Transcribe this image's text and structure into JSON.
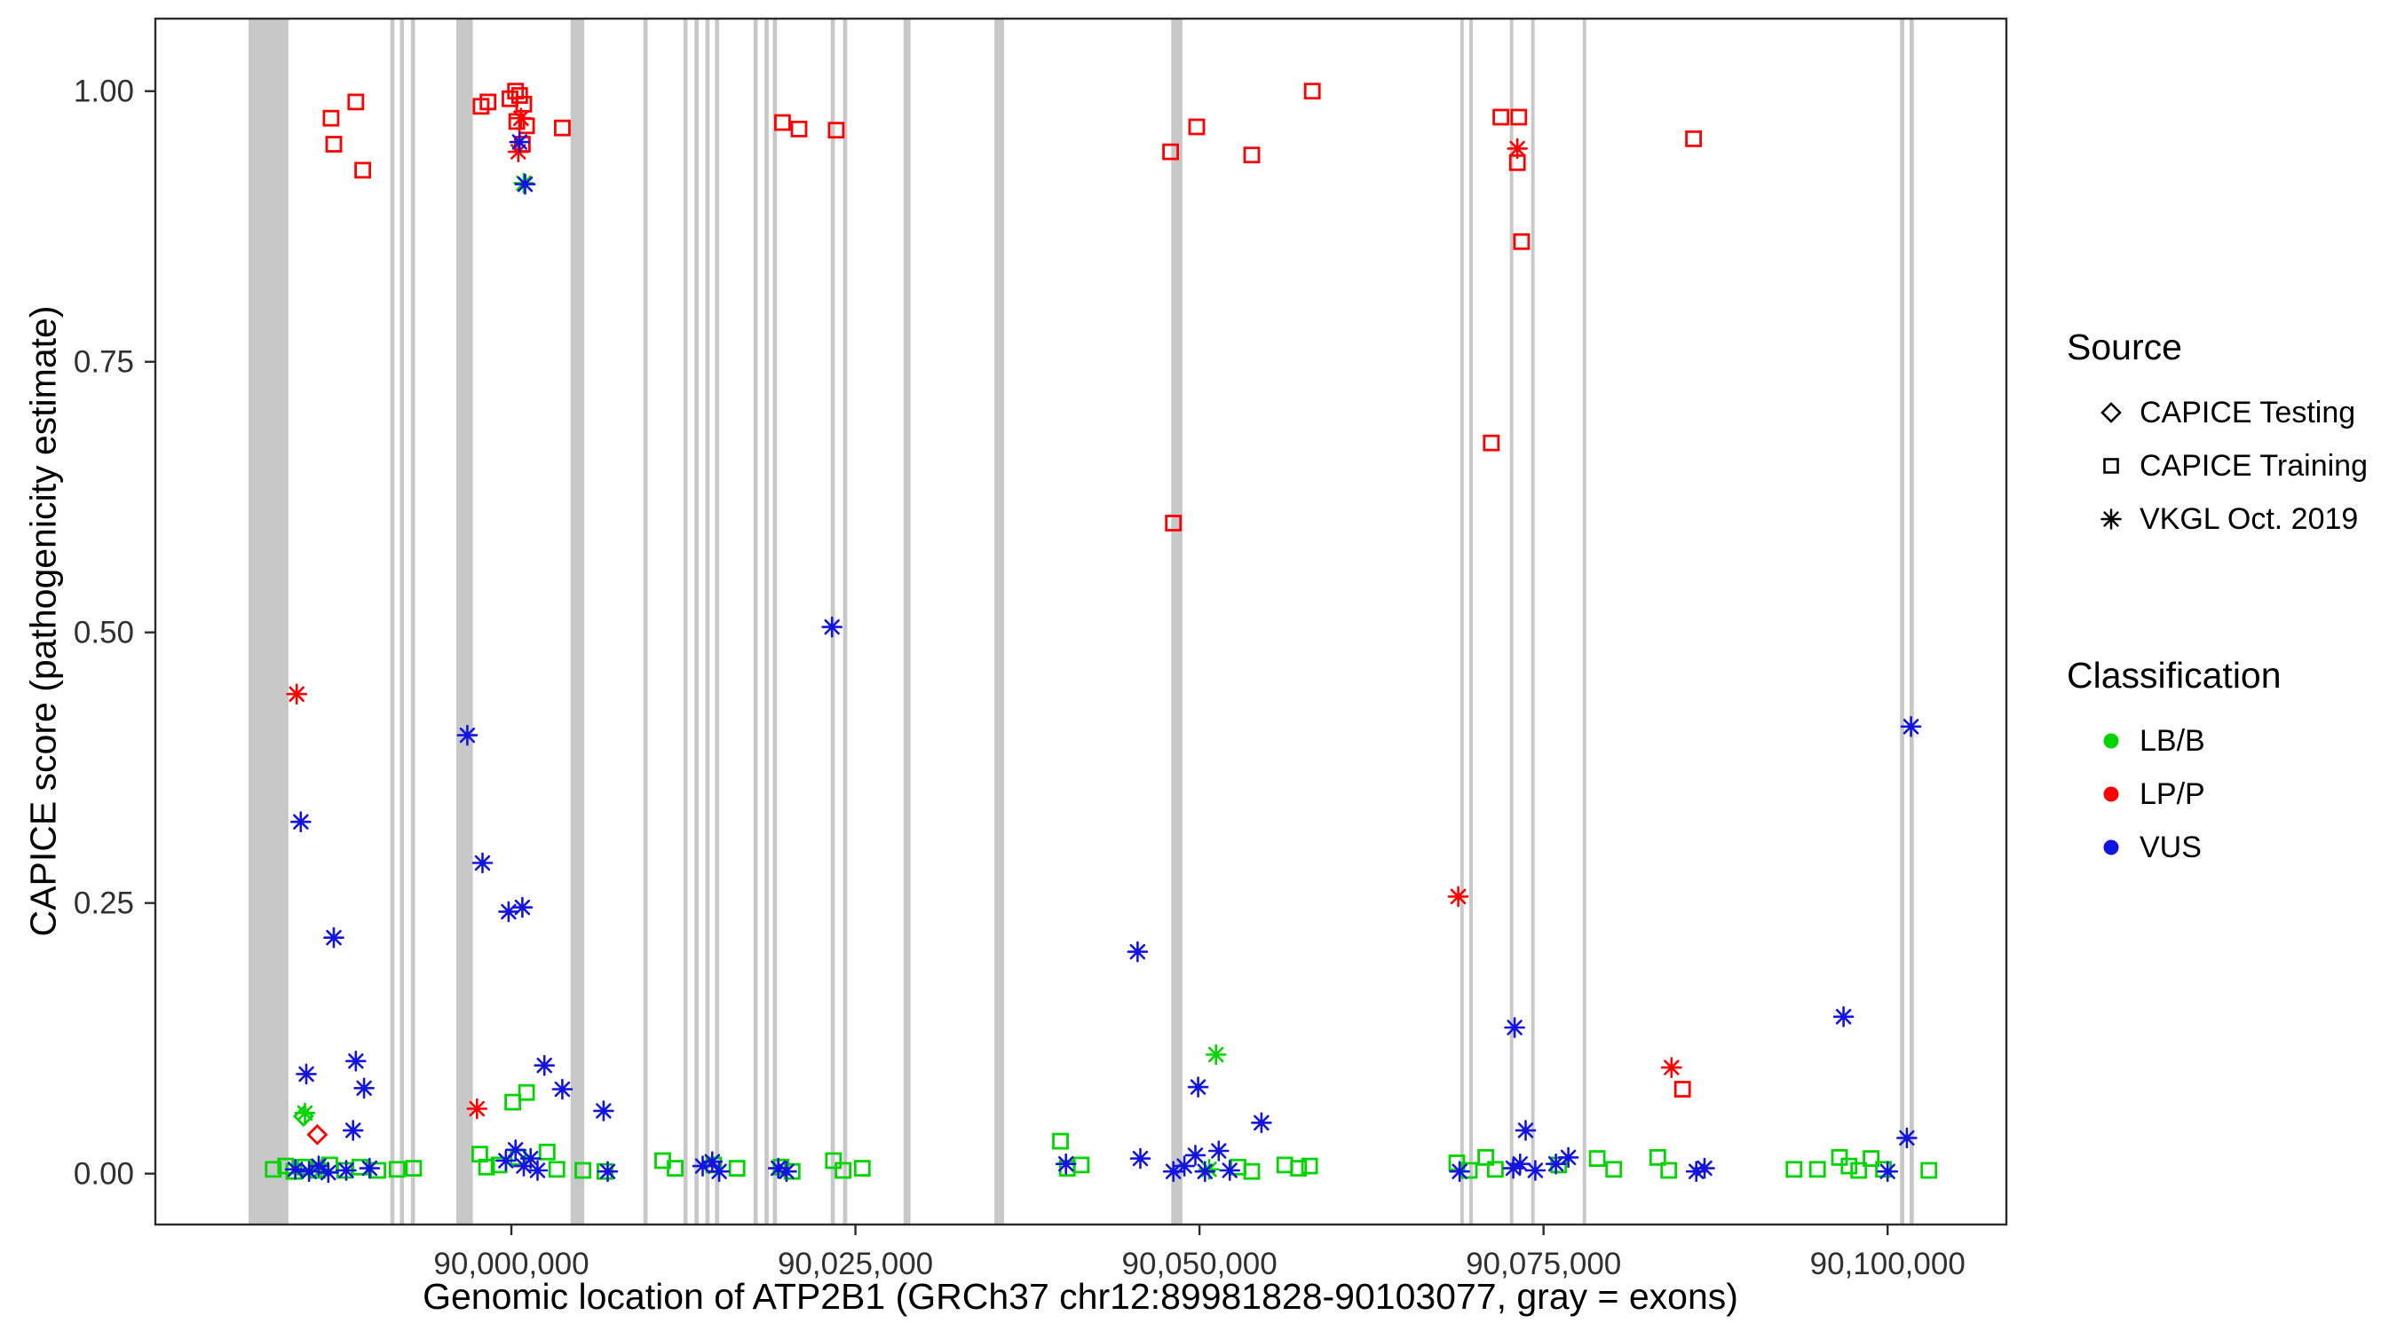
{
  "legend": {
    "source": {
      "title": "Source",
      "items": [
        {
          "label": "CAPICE Testing",
          "marker": "diamond"
        },
        {
          "label": "CAPICE Training",
          "marker": "square"
        },
        {
          "label": "VKGL Oct. 2019",
          "marker": "asterisk"
        }
      ]
    },
    "classification": {
      "title": "Classification",
      "items": [
        {
          "label": "LB/B",
          "color": "#00d500"
        },
        {
          "label": "LP/P",
          "color": "#ff0000"
        },
        {
          "label": "VUS",
          "color": "#1414e0"
        }
      ]
    }
  },
  "chart_data": {
    "type": "scatter",
    "title": "",
    "xlabel": "Genomic location of ATP2B1 (GRCh37 chr12:89981828-90103077, gray = exons)",
    "ylabel": "CAPICE score (pathogenicity estimate)",
    "xlim": [
      89974132,
      90108630
    ],
    "ylim": [
      -0.047,
      1.067
    ],
    "x_ticks": [
      {
        "value": 90000000,
        "label": "90,000,000"
      },
      {
        "value": 90025000,
        "label": "90,025,000"
      },
      {
        "value": 90050000,
        "label": "90,050,000"
      },
      {
        "value": 90075000,
        "label": "90,075,000"
      },
      {
        "value": 90100000,
        "label": "90,100,000"
      }
    ],
    "y_ticks": [
      {
        "value": 0.0,
        "label": "0.00"
      },
      {
        "value": 0.25,
        "label": "0.25"
      },
      {
        "value": 0.5,
        "label": "0.50"
      },
      {
        "value": 0.75,
        "label": "0.75"
      },
      {
        "value": 1.0,
        "label": "1.00"
      }
    ],
    "exon_color": "#c8c8c8",
    "colors": {
      "LB/B": "#00d500",
      "LP/P": "#ff0000",
      "VUS": "#1414e0"
    },
    "exons": [
      [
        89980900,
        89983800
      ],
      [
        89991200,
        89991500
      ],
      [
        89991900,
        89992200
      ],
      [
        89992700,
        89993000
      ],
      [
        89996000,
        89997200
      ],
      [
        90004300,
        90005300
      ],
      [
        90009600,
        90009900
      ],
      [
        90012500,
        90012800
      ],
      [
        90013300,
        90013600
      ],
      [
        90014100,
        90014400
      ],
      [
        90014800,
        90015100
      ],
      [
        90017600,
        90017900
      ],
      [
        90018400,
        90018700
      ],
      [
        90019000,
        90019300
      ],
      [
        90023200,
        90023500
      ],
      [
        90024100,
        90024400
      ],
      [
        90028500,
        90029000
      ],
      [
        90035100,
        90035800
      ],
      [
        90047950,
        90048760
      ],
      [
        90068950,
        90069200
      ],
      [
        90069600,
        90069850
      ],
      [
        90072550,
        90072800
      ],
      [
        90074100,
        90074350
      ],
      [
        90077850,
        90078100
      ],
      [
        90100900,
        90101200
      ],
      [
        90101600,
        90101900
      ]
    ],
    "series": [
      {
        "source": "CAPICE Training",
        "classification": "LP/P",
        "marker": "square",
        "points": [
          [
            89986900,
            0.975
          ],
          [
            89988700,
            0.99
          ],
          [
            89987100,
            0.951
          ],
          [
            89989200,
            0.927
          ],
          [
            89997800,
            0.986
          ],
          [
            89998300,
            0.99
          ],
          [
            89999900,
            0.993
          ],
          [
            90000300,
            1.0
          ],
          [
            90000600,
            0.996
          ],
          [
            90000900,
            0.988
          ],
          [
            90000400,
            0.972
          ],
          [
            90001100,
            0.968
          ],
          [
            90000800,
            0.951
          ],
          [
            90003700,
            0.966
          ],
          [
            90019700,
            0.971
          ],
          [
            90020900,
            0.965
          ],
          [
            90023600,
            0.964
          ],
          [
            90047900,
            0.944
          ],
          [
            90049800,
            0.967
          ],
          [
            90048100,
            0.601
          ],
          [
            90053800,
            0.941
          ],
          [
            90058200,
            1.0
          ],
          [
            90071900,
            0.976
          ],
          [
            90073200,
            0.976
          ],
          [
            90073100,
            0.934
          ],
          [
            90073400,
            0.861
          ],
          [
            90071200,
            0.675
          ],
          [
            90085900,
            0.956
          ],
          [
            90085100,
            0.078
          ]
        ]
      },
      {
        "source": "CAPICE Training",
        "classification": "LB/B",
        "marker": "square",
        "points": [
          [
            89982700,
            0.004
          ],
          [
            89983600,
            0.007
          ],
          [
            89984200,
            0.002
          ],
          [
            89985000,
            0.006
          ],
          [
            89985900,
            0.003
          ],
          [
            89986800,
            0.008
          ],
          [
            89987900,
            0.003
          ],
          [
            89989000,
            0.006
          ],
          [
            89990300,
            0.003
          ],
          [
            89991700,
            0.004
          ],
          [
            89992900,
            0.005
          ],
          [
            89997700,
            0.018
          ],
          [
            89998200,
            0.006
          ],
          [
            89999100,
            0.008
          ],
          [
            90000100,
            0.066
          ],
          [
            90001100,
            0.075
          ],
          [
            90000500,
            0.015
          ],
          [
            90002600,
            0.02
          ],
          [
            90003300,
            0.004
          ],
          [
            90005200,
            0.003
          ],
          [
            90006800,
            0.002
          ],
          [
            90011000,
            0.012
          ],
          [
            90011900,
            0.005
          ],
          [
            90014700,
            0.008
          ],
          [
            90016400,
            0.005
          ],
          [
            90019600,
            0.006
          ],
          [
            90020400,
            0.002
          ],
          [
            90023400,
            0.012
          ],
          [
            90024100,
            0.003
          ],
          [
            90025500,
            0.005
          ],
          [
            90039900,
            0.03
          ],
          [
            90040400,
            0.005
          ],
          [
            90041400,
            0.008
          ],
          [
            90052800,
            0.006
          ],
          [
            90053800,
            0.002
          ],
          [
            90056200,
            0.008
          ],
          [
            90057200,
            0.005
          ],
          [
            90058000,
            0.007
          ],
          [
            90068700,
            0.01
          ],
          [
            90069600,
            0.003
          ],
          [
            90070800,
            0.015
          ],
          [
            90071500,
            0.004
          ],
          [
            90076100,
            0.008
          ],
          [
            90078900,
            0.014
          ],
          [
            90080100,
            0.004
          ],
          [
            90083300,
            0.015
          ],
          [
            90084100,
            0.003
          ],
          [
            90093200,
            0.004
          ],
          [
            90094900,
            0.004
          ],
          [
            90096500,
            0.015
          ],
          [
            90097200,
            0.007
          ],
          [
            90097900,
            0.003
          ],
          [
            90098800,
            0.014
          ],
          [
            90099700,
            0.004
          ],
          [
            90103000,
            0.003
          ]
        ]
      },
      {
        "source": "CAPICE Testing",
        "classification": "LP/P",
        "marker": "diamond",
        "points": [
          [
            89985900,
            0.036
          ]
        ]
      },
      {
        "source": "CAPICE Testing",
        "classification": "LB/B",
        "marker": "diamond",
        "points": [
          [
            89984900,
            0.053
          ]
        ]
      },
      {
        "source": "VKGL Oct. 2019",
        "classification": "LP/P",
        "marker": "asterisk",
        "points": [
          [
            89984400,
            0.443
          ],
          [
            89997500,
            0.06
          ],
          [
            90000700,
            0.975
          ],
          [
            90000500,
            0.944
          ],
          [
            90068800,
            0.256
          ],
          [
            90073100,
            0.947
          ],
          [
            90084300,
            0.098
          ]
        ]
      },
      {
        "source": "VKGL Oct. 2019",
        "classification": "LB/B",
        "marker": "asterisk",
        "points": [
          [
            89985000,
            0.056
          ],
          [
            90000900,
            0.915
          ],
          [
            90051200,
            0.11
          ],
          [
            89986200,
            0.004
          ],
          [
            90050700,
            0.004
          ]
        ]
      },
      {
        "source": "VKGL Oct. 2019",
        "classification": "VUS",
        "marker": "asterisk",
        "points": [
          [
            89984700,
            0.325
          ],
          [
            89987100,
            0.218
          ],
          [
            89988700,
            0.104
          ],
          [
            89985100,
            0.092
          ],
          [
            89989300,
            0.079
          ],
          [
            89988500,
            0.04
          ],
          [
            89996800,
            0.405
          ],
          [
            89997900,
            0.287
          ],
          [
            89999800,
            0.242
          ],
          [
            90000800,
            0.246
          ],
          [
            90000600,
            0.953
          ],
          [
            90001000,
            0.914
          ],
          [
            90002400,
            0.1
          ],
          [
            90003700,
            0.078
          ],
          [
            90006700,
            0.058
          ],
          [
            90023300,
            0.505
          ],
          [
            90045500,
            0.205
          ],
          [
            90049900,
            0.08
          ],
          [
            90054500,
            0.047
          ],
          [
            90072900,
            0.135
          ],
          [
            90073700,
            0.04
          ],
          [
            90096800,
            0.145
          ],
          [
            90101400,
            0.033
          ],
          [
            90101700,
            0.413
          ],
          [
            89984300,
            0.004
          ],
          [
            89985300,
            0.002
          ],
          [
            89986000,
            0.007
          ],
          [
            89986700,
            0.001
          ],
          [
            89988000,
            0.003
          ],
          [
            89989700,
            0.005
          ],
          [
            89999600,
            0.012
          ],
          [
            90000300,
            0.022
          ],
          [
            90000900,
            0.007
          ],
          [
            90001400,
            0.014
          ],
          [
            90001900,
            0.003
          ],
          [
            90007000,
            0.002
          ],
          [
            90013900,
            0.007
          ],
          [
            90014600,
            0.011
          ],
          [
            90015100,
            0.002
          ],
          [
            90019400,
            0.005
          ],
          [
            90020000,
            0.002
          ],
          [
            90040300,
            0.009
          ],
          [
            90045700,
            0.014
          ],
          [
            90048100,
            0.002
          ],
          [
            90048900,
            0.007
          ],
          [
            90049700,
            0.017
          ],
          [
            90050400,
            0.002
          ],
          [
            90051400,
            0.021
          ],
          [
            90052200,
            0.003
          ],
          [
            90068900,
            0.002
          ],
          [
            90072800,
            0.005
          ],
          [
            90073300,
            0.009
          ],
          [
            90074400,
            0.003
          ],
          [
            90075900,
            0.009
          ],
          [
            90076800,
            0.015
          ],
          [
            90086100,
            0.002
          ],
          [
            90086700,
            0.005
          ],
          [
            90100000,
            0.002
          ]
        ]
      }
    ]
  }
}
